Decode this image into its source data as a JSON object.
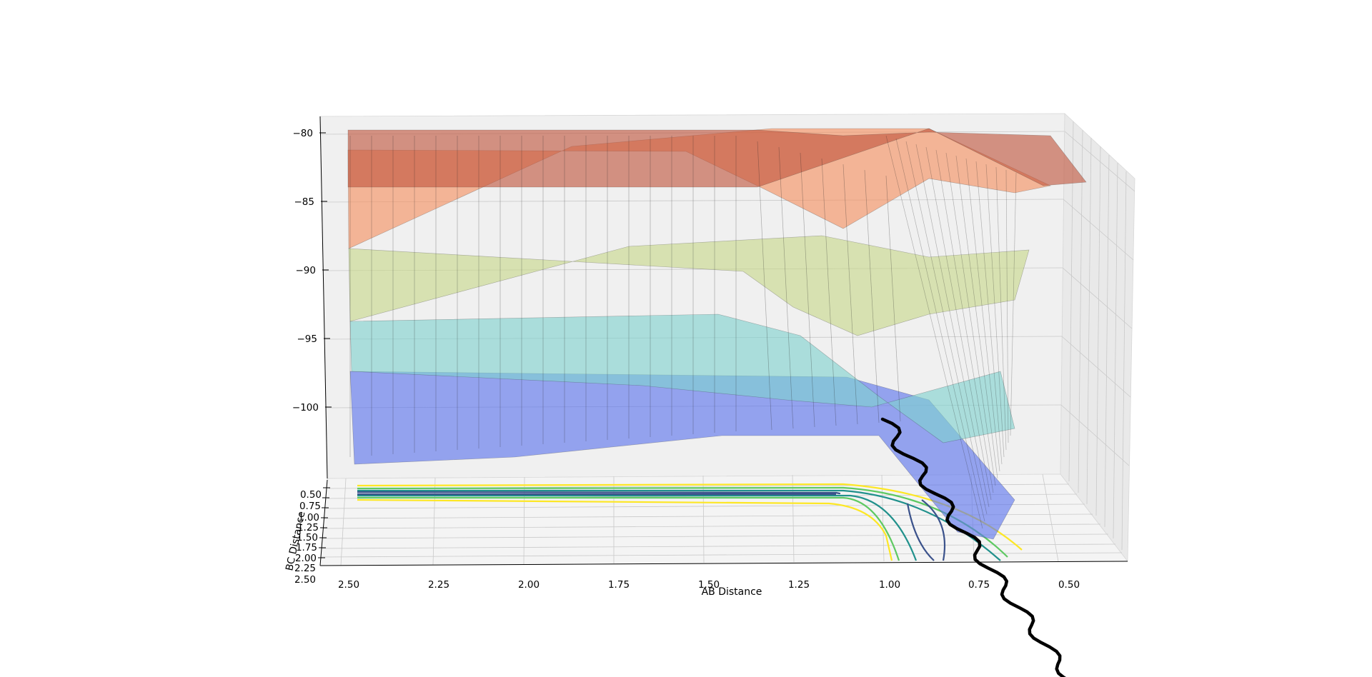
{
  "chart_data": {
    "type": "surface3d",
    "title": "",
    "xlabel": "AB Distance",
    "ylabel": "BC Distance",
    "zlabel": "",
    "x_ticks": [
      "2.50",
      "2.25",
      "2.00",
      "1.75",
      "1.50",
      "1.25",
      "1.00",
      "0.75",
      "0.50"
    ],
    "y_ticks": [
      "0.50",
      "0.75",
      "1.00",
      "1.25",
      "1.50",
      "1.75",
      "2.00",
      "2.25",
      "2.50"
    ],
    "z_ticks": [
      "−80",
      "−85",
      "−90",
      "−95",
      "−100"
    ],
    "xlim": [
      2.5,
      0.4
    ],
    "ylim": [
      0.3,
      2.5
    ],
    "zlim": [
      -104,
      -79
    ],
    "grid": true,
    "colormap": "jet",
    "contour_colormap": "viridis",
    "surface_energy_bands": [
      {
        "z_from": -104,
        "z_to": -98,
        "color": "#5a73ee"
      },
      {
        "z_from": -98,
        "z_to": -94,
        "color": "#7fd2cf"
      },
      {
        "z_from": -94,
        "z_to": -89,
        "color": "#c8d98a"
      },
      {
        "z_from": -89,
        "z_to": -84,
        "color": "#f5905f"
      },
      {
        "z_from": -84,
        "z_to": -80,
        "color": "#c0553d"
      }
    ],
    "contour_levels": [
      {
        "color": "#fde725"
      },
      {
        "color": "#5ec962"
      },
      {
        "color": "#21918c"
      },
      {
        "color": "#3b528b"
      }
    ],
    "trajectory": {
      "color": "#000000",
      "points": [
        {
          "ab": 1.0,
          "bc": 0.74,
          "energy": -100.7
        },
        {
          "ab": 0.95,
          "bc": 0.8,
          "energy": -101.5
        },
        {
          "ab": 0.85,
          "bc": 0.95,
          "energy": -102.5
        },
        {
          "ab": 0.78,
          "bc": 1.2,
          "energy": -103.5
        },
        {
          "ab": 0.74,
          "bc": 1.6,
          "energy": -104.5
        },
        {
          "ab": 0.72,
          "bc": 2.1,
          "energy": -105.5
        },
        {
          "ab": 0.7,
          "bc": 2.6,
          "energy": -106.5
        },
        {
          "ab": 0.68,
          "bc": 3.1,
          "energy": -107.5
        }
      ]
    }
  }
}
